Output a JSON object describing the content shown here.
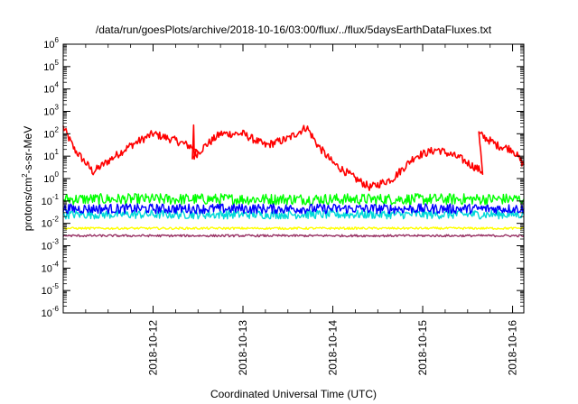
{
  "chart_data": {
    "type": "line",
    "title": "/data/run/goesPlots/archive/2018-10-16/03:00/flux/../flux/5daysEarthDataFluxes.txt",
    "xlabel": "Coordinated Universal Time (UTC)",
    "ylabel": {
      "base": "protons/cm",
      "sup": "2",
      "rest": "-s-sr-MeV"
    },
    "yscale": "log",
    "ylim": [
      1e-06,
      1000000.0
    ],
    "xlim": [
      "2018-10-11T00:00",
      "2018-10-16T03:00"
    ],
    "x_ticks": [
      "2018-10-12",
      "2018-10-13",
      "2018-10-14",
      "2018-10-15",
      "2018-10-16"
    ],
    "y_ticks": [
      {
        "base": "10",
        "exp": "-6"
      },
      {
        "base": "10",
        "exp": "-5"
      },
      {
        "base": "10",
        "exp": "-4"
      },
      {
        "base": "10",
        "exp": "-3"
      },
      {
        "base": "10",
        "exp": "-2"
      },
      {
        "base": "10",
        "exp": "-1"
      },
      {
        "base": "10",
        "exp": "0"
      },
      {
        "base": "10",
        "exp": "1"
      },
      {
        "base": "10",
        "exp": "2"
      },
      {
        "base": "10",
        "exp": "3"
      },
      {
        "base": "10",
        "exp": "4"
      },
      {
        "base": "10",
        "exp": "5"
      },
      {
        "base": "10",
        "exp": "6"
      }
    ],
    "grid": false,
    "legend": "none",
    "series": [
      {
        "color": "#ff0000",
        "noise": 0.18,
        "x": [
          "2018-10-11T00:00",
          "2018-10-11T03:00",
          "2018-10-11T08:00",
          "2018-10-11T13:00",
          "2018-10-11T18:00",
          "2018-10-12T00:00",
          "2018-10-12T06:00",
          "2018-10-12T12:00",
          "2018-10-12T10:30",
          "2018-10-12T10:50",
          "2018-10-12T11:00",
          "2018-10-12T14:00",
          "2018-10-12T18:00",
          "2018-10-13T00:00",
          "2018-10-13T06:00",
          "2018-10-13T12:00",
          "2018-10-13T17:00",
          "2018-10-13T20:00",
          "2018-10-14T00:00",
          "2018-10-14T06:00",
          "2018-10-14T10:00",
          "2018-10-14T16:00",
          "2018-10-14T22:00",
          "2018-10-15T04:00",
          "2018-10-15T10:00",
          "2018-10-15T16:00",
          "2018-10-15T15:00",
          "2018-10-15T20:00",
          "2018-10-16T00:00",
          "2018-10-16T03:00"
        ],
        "y": [
          200,
          20,
          2,
          8,
          30,
          100,
          50,
          20,
          6,
          250,
          10,
          30,
          100,
          100,
          30,
          60,
          200,
          30,
          5,
          1,
          0.4,
          1,
          10,
          20,
          8,
          2,
          100,
          30,
          20,
          4
        ]
      },
      {
        "color": "#00ff00",
        "noise": 0.25,
        "x": [
          "2018-10-11T00:00",
          "2018-10-12T00:00",
          "2018-10-13T00:00",
          "2018-10-14T00:00",
          "2018-10-15T00:00",
          "2018-10-16T00:00",
          "2018-10-16T03:00"
        ],
        "y": [
          0.12,
          0.12,
          0.12,
          0.12,
          0.12,
          0.12,
          0.12
        ]
      },
      {
        "color": "#00d8d8",
        "noise": 0.2,
        "x": [
          "2018-10-11T00:00",
          "2018-10-12T00:00",
          "2018-10-13T00:00",
          "2018-10-14T00:00",
          "2018-10-15T00:00",
          "2018-10-16T00:00",
          "2018-10-16T03:00"
        ],
        "y": [
          0.025,
          0.025,
          0.025,
          0.025,
          0.025,
          0.025,
          0.025
        ]
      },
      {
        "color": "#0000ff",
        "noise": 0.22,
        "x": [
          "2018-10-11T00:00",
          "2018-10-12T00:00",
          "2018-10-13T00:00",
          "2018-10-14T00:00",
          "2018-10-15T00:00",
          "2018-10-16T00:00",
          "2018-10-16T03:00"
        ],
        "y": [
          0.045,
          0.045,
          0.045,
          0.045,
          0.045,
          0.045,
          0.045
        ]
      },
      {
        "color": "#ffff00",
        "noise": 0.05,
        "x": [
          "2018-10-11T00:00",
          "2018-10-12T00:00",
          "2018-10-13T00:00",
          "2018-10-14T00:00",
          "2018-10-15T00:00",
          "2018-10-16T00:00",
          "2018-10-16T03:00"
        ],
        "y": [
          0.006,
          0.006,
          0.006,
          0.006,
          0.006,
          0.006,
          0.006
        ]
      },
      {
        "color": "#993366",
        "noise": 0.05,
        "x": [
          "2018-10-11T00:00",
          "2018-10-12T00:00",
          "2018-10-13T00:00",
          "2018-10-14T00:00",
          "2018-10-15T00:00",
          "2018-10-16T00:00",
          "2018-10-16T03:00"
        ],
        "y": [
          0.0028,
          0.0028,
          0.0028,
          0.0028,
          0.0028,
          0.0028,
          0.0028
        ]
      }
    ]
  }
}
